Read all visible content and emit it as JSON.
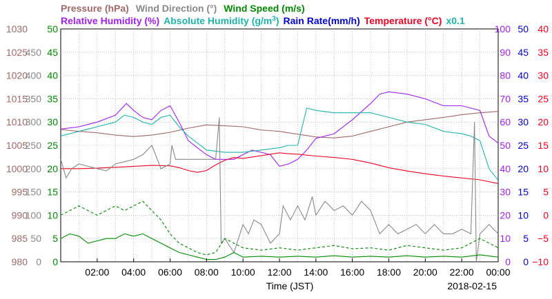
{
  "chart_data": {
    "type": "line",
    "xlabel": "Time (JST)",
    "date_label": "2018-02-15",
    "x_ticks": [
      "02:00",
      "04:00",
      "06:00",
      "08:00",
      "10:00",
      "12:00",
      "14:00",
      "16:00",
      "18:00",
      "20:00",
      "22:00",
      "00:00"
    ],
    "legend": {
      "row1": [
        {
          "text": "Pressure (hPa)",
          "color": "#a06868"
        },
        {
          "text": "Wind Direction (°)",
          "color": "#888888"
        },
        {
          "text": "Wind Speed (m/s)",
          "color": "#008800"
        }
      ],
      "row2": [
        {
          "text": "Relative Humidity (%)",
          "color": "#a020f0"
        },
        {
          "text": "Absolute Humidity (g/m",
          "color": "#20b2aa",
          "sup": "3",
          "tail": ")"
        },
        {
          "text": "Rain Rate(mm/h)",
          "color": "#0000cc"
        },
        {
          "text": "Temperature (°C)",
          "color": "#ee0022"
        },
        {
          "text": "x0.1",
          "color": "#20b2aa"
        }
      ]
    },
    "axes": {
      "pressure": {
        "color": "#a06868",
        "ticks": [
          "1030",
          "1025",
          "1020",
          "1015",
          "1010",
          "1005",
          "1000",
          "995",
          "990",
          "985",
          "980"
        ],
        "range": [
          980,
          1030
        ]
      },
      "wind_direction": {
        "color": "#888888",
        "ticks": [
          "450",
          "400",
          "350",
          "300",
          "250",
          "200",
          "150",
          "100",
          "50",
          "0"
        ],
        "range": [
          0,
          500
        ]
      },
      "wind_speed": {
        "color": "#008800",
        "ticks": [
          "50",
          "45",
          "40",
          "35",
          "30",
          "25",
          "20",
          "15",
          "10",
          "5",
          "0"
        ],
        "range": [
          0,
          50
        ]
      },
      "humidity": {
        "color": "#a020f0",
        "ticks": [
          "100",
          "90",
          "80",
          "70",
          "60",
          "50",
          "40",
          "30",
          "20",
          "10",
          "0"
        ],
        "range": [
          0,
          100
        ]
      },
      "rain_rate": {
        "color": "#0000cc",
        "ticks": [
          "50",
          "45",
          "40",
          "35",
          "30",
          "25",
          "20",
          "15",
          "10",
          "5",
          "0"
        ],
        "range": [
          0,
          50
        ]
      },
      "temperature": {
        "color": "#ee0022",
        "ticks": [
          "40",
          "35",
          "30",
          "25",
          "20",
          "15",
          "10",
          "5",
          "0",
          "−5",
          "−10"
        ],
        "range": [
          -10,
          40
        ]
      }
    },
    "x_range_hours": [
      0,
      24
    ],
    "series": [
      {
        "name": "Pressure (hPa)",
        "axis": "pressure",
        "color": "#a06868",
        "dash": "",
        "x": [
          0,
          1,
          2,
          3,
          4,
          5,
          6,
          7,
          8,
          9,
          10,
          11,
          12,
          13,
          14,
          15,
          16,
          17,
          18,
          19,
          20,
          21,
          22,
          23,
          24
        ],
        "y": [
          1008.4,
          1008.0,
          1007.7,
          1007.2,
          1006.9,
          1007.2,
          1007.8,
          1008.7,
          1009.4,
          1009.2,
          1009.0,
          1008.3,
          1008.0,
          1007.4,
          1006.8,
          1006.6,
          1007.0,
          1008.0,
          1009.0,
          1010.0,
          1010.5,
          1011.0,
          1011.6,
          1012.0,
          1012.3
        ]
      },
      {
        "name": "Relative Humidity (%)",
        "axis": "humidity",
        "color": "#a020f0",
        "dash": "",
        "x": [
          0,
          1,
          2,
          3,
          3.6,
          4,
          4.5,
          5,
          5.5,
          6,
          6.5,
          7,
          7.5,
          8,
          8.5,
          9,
          9.5,
          10,
          10.5,
          11,
          11.5,
          12,
          12.5,
          13,
          13.5,
          14,
          15,
          16,
          17,
          17.5,
          18,
          19,
          20,
          21,
          22,
          22.5,
          23,
          23.5,
          24
        ],
        "y": [
          57,
          58,
          60,
          63,
          68,
          65,
          62,
          61,
          65,
          67,
          60,
          52,
          49,
          46,
          44,
          44,
          44,
          46,
          48,
          47,
          46,
          41,
          42,
          44,
          48,
          53,
          55,
          61,
          68,
          72,
          73,
          72,
          70,
          67,
          67,
          66,
          65,
          54,
          51
        ]
      },
      {
        "name": "Absolute Humidity (g/m3) x0.1",
        "axis": "humidity",
        "color": "#20b2aa",
        "dash": "",
        "x": [
          0,
          1,
          2,
          3,
          3.5,
          4,
          4.5,
          5,
          5.5,
          6,
          6.5,
          7,
          7.5,
          8,
          9,
          10,
          11,
          12,
          12.5,
          13,
          13.5,
          14,
          15,
          16,
          17,
          17.5,
          18,
          19,
          20,
          21,
          22,
          22.5,
          23,
          23.5,
          24
        ],
        "y": [
          54,
          56,
          58,
          60,
          63,
          62,
          60,
          59,
          62,
          63,
          58,
          54,
          51,
          48,
          47,
          47,
          48,
          49,
          50,
          50,
          66,
          65,
          64,
          64,
          64,
          63,
          62,
          60,
          59,
          56,
          55,
          54,
          52,
          40,
          35
        ]
      },
      {
        "name": "Temperature (°C)",
        "axis": "temperature",
        "color": "#ee0022",
        "dash": "",
        "x": [
          0,
          1,
          2,
          3,
          4,
          5,
          6,
          6.5,
          7,
          7.5,
          8,
          8.5,
          9,
          9.5,
          10,
          11,
          12,
          12.5,
          13,
          14,
          15,
          16,
          17,
          18,
          19,
          20,
          21,
          22,
          23,
          24
        ],
        "y": [
          10.0,
          10.0,
          10.1,
          10.3,
          10.5,
          10.7,
          10.6,
          10.2,
          9.6,
          9.2,
          9.6,
          10.8,
          11.8,
          12.4,
          12.2,
          12.8,
          13.4,
          13.2,
          13.1,
          12.7,
          12.4,
          12.0,
          11.2,
          10.2,
          9.5,
          8.9,
          8.4,
          8.0,
          7.6,
          6.8
        ]
      },
      {
        "name": "Wind Direction (°)",
        "axis": "wind_direction",
        "color": "#888888",
        "dash": "",
        "x": [
          0,
          0.3,
          0.6,
          1,
          1.5,
          2,
          2.5,
          3,
          3.5,
          4,
          4.5,
          5,
          5.5,
          6,
          6.1,
          6.3,
          6.6,
          7,
          7.5,
          8,
          8.5,
          8.7,
          8.8,
          9,
          9.5,
          10,
          10.3,
          10.6,
          11,
          11.5,
          12,
          12.2,
          12.6,
          13,
          13.4,
          13.8,
          14,
          14.5,
          15,
          15.5,
          16,
          16.5,
          17,
          17.5,
          18,
          18.5,
          19,
          19.5,
          20,
          20.5,
          21,
          21.5,
          22,
          22.5,
          22.7,
          22.8,
          23,
          23.5,
          24
        ],
        "y": [
          220,
          180,
          200,
          210,
          205,
          200,
          195,
          210,
          215,
          220,
          230,
          250,
          200,
          210,
          250,
          220,
          220,
          220,
          220,
          220,
          220,
          310,
          40,
          50,
          20,
          80,
          60,
          90,
          80,
          40,
          60,
          120,
          90,
          120,
          90,
          140,
          100,
          130,
          110,
          120,
          100,
          130,
          110,
          60,
          80,
          60,
          70,
          80,
          60,
          80,
          60,
          60,
          70,
          60,
          300,
          0,
          60,
          80,
          60
        ]
      },
      {
        "name": "Wind Speed (m/s)",
        "axis": "wind_speed",
        "color": "#008800",
        "dash": "",
        "x": [
          0,
          0.5,
          1,
          1.5,
          2,
          2.5,
          3,
          3.5,
          4,
          4.5,
          5,
          5.5,
          6,
          6.5,
          7,
          7.5,
          8,
          8.5,
          9,
          9.5,
          10,
          11,
          12,
          13,
          14,
          15,
          16,
          17,
          18,
          19,
          20,
          21,
          22,
          23,
          24
        ],
        "y": [
          5,
          6,
          5.5,
          4,
          4.5,
          5,
          5,
          6,
          5.5,
          6,
          5,
          4,
          3,
          2,
          1.5,
          1,
          0.5,
          0.5,
          1,
          2,
          1,
          1.2,
          1,
          1.2,
          1,
          1.3,
          1,
          1.2,
          1,
          1.3,
          1,
          1.2,
          1,
          1.5,
          1
        ]
      },
      {
        "name": "Wind Speed (max, m/s)",
        "axis": "wind_speed",
        "color": "#008800",
        "dash": "4,3",
        "x": [
          0,
          0.5,
          1,
          1.5,
          2,
          2.5,
          3,
          3.5,
          4,
          4.5,
          5,
          5.5,
          6,
          6.5,
          7,
          7.5,
          8,
          8.5,
          9,
          9.5,
          10,
          11,
          12,
          13,
          14,
          15,
          16,
          17,
          18,
          19,
          20,
          21,
          22,
          23,
          24
        ],
        "y": [
          10,
          11,
          12,
          11,
          10,
          11,
          12,
          11,
          12,
          13,
          11,
          9,
          6,
          4,
          3,
          2,
          1.5,
          2,
          5,
          4,
          3,
          2.5,
          3,
          2.5,
          3,
          3.5,
          2.8,
          3,
          2.5,
          3.5,
          3,
          2.5,
          3,
          5,
          3
        ]
      }
    ]
  }
}
